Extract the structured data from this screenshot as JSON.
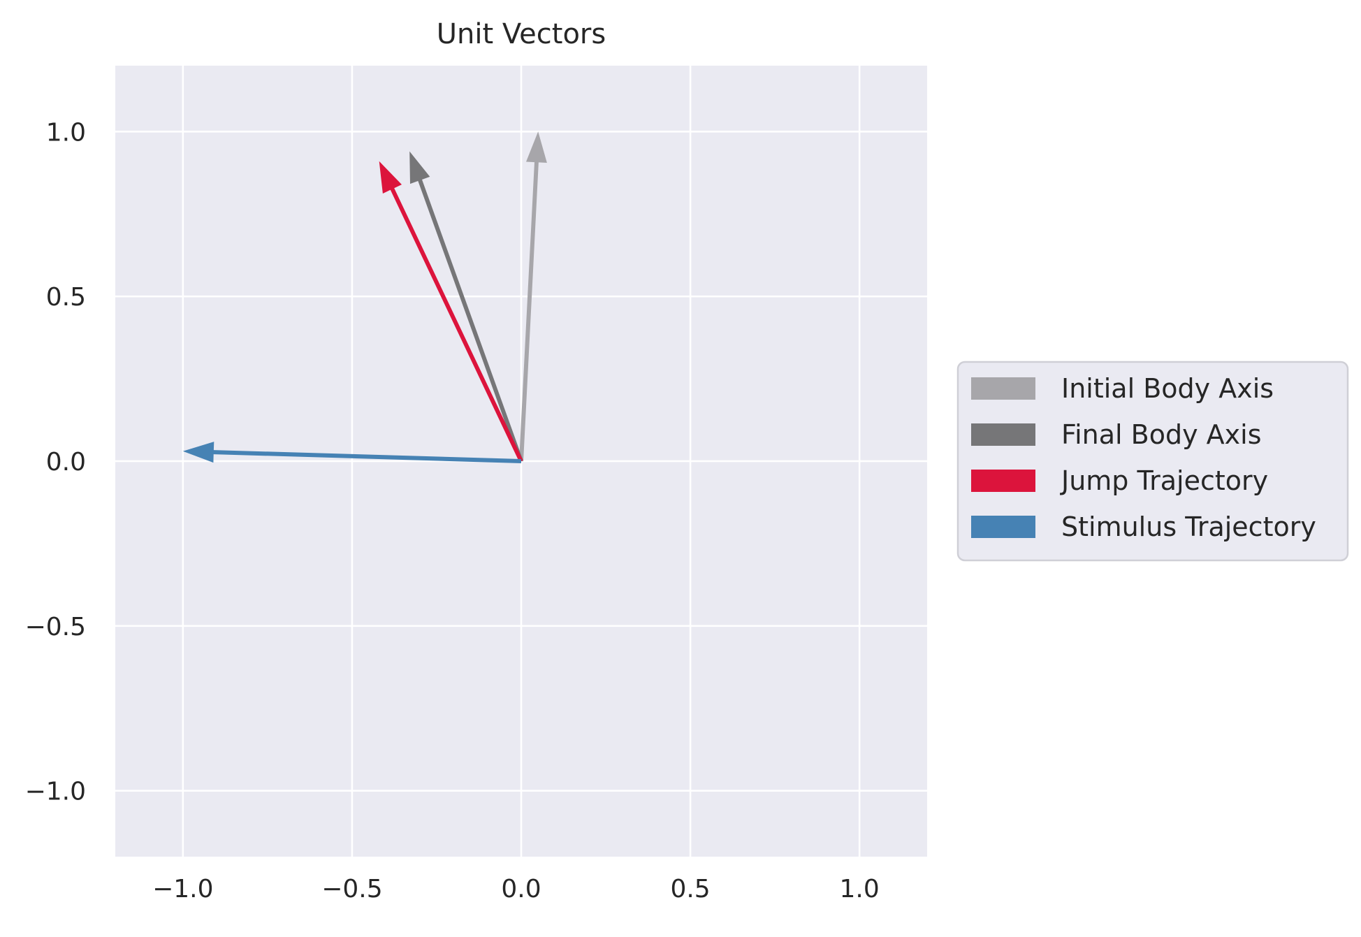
{
  "chart_data": {
    "type": "quiver",
    "title": "Unit Vectors",
    "xlabel": "",
    "ylabel": "",
    "xlim": [
      -1.2,
      1.2
    ],
    "ylim": [
      -1.2,
      1.2
    ],
    "xticks": [
      -1.0,
      -0.5,
      0.0,
      0.5,
      1.0
    ],
    "yticks": [
      -1.0,
      -0.5,
      0.0,
      0.5,
      1.0
    ],
    "xtick_labels": [
      "−1.0",
      "−0.5",
      "0.0",
      "0.5",
      "1.0"
    ],
    "ytick_labels": [
      "−1.0",
      "−0.5",
      "0.0",
      "0.5",
      "1.0"
    ],
    "grid": true,
    "background": "#eaeaf2",
    "legend_position": "center-right, outside plot",
    "series": [
      {
        "name": "Initial Body Axis",
        "color": "#a7a6aa",
        "origin": [
          0,
          0
        ],
        "vector": [
          0.05,
          1.0
        ]
      },
      {
        "name": "Final Body Axis",
        "color": "#767678",
        "origin": [
          0,
          0
        ],
        "vector": [
          -0.33,
          0.94
        ]
      },
      {
        "name": "Jump Trajectory",
        "color": "#dc143c",
        "origin": [
          0,
          0
        ],
        "vector": [
          -0.42,
          0.91
        ]
      },
      {
        "name": "Stimulus Trajectory",
        "color": "#4682b4",
        "origin": [
          0,
          0
        ],
        "vector": [
          -1.0,
          0.03
        ]
      }
    ]
  }
}
